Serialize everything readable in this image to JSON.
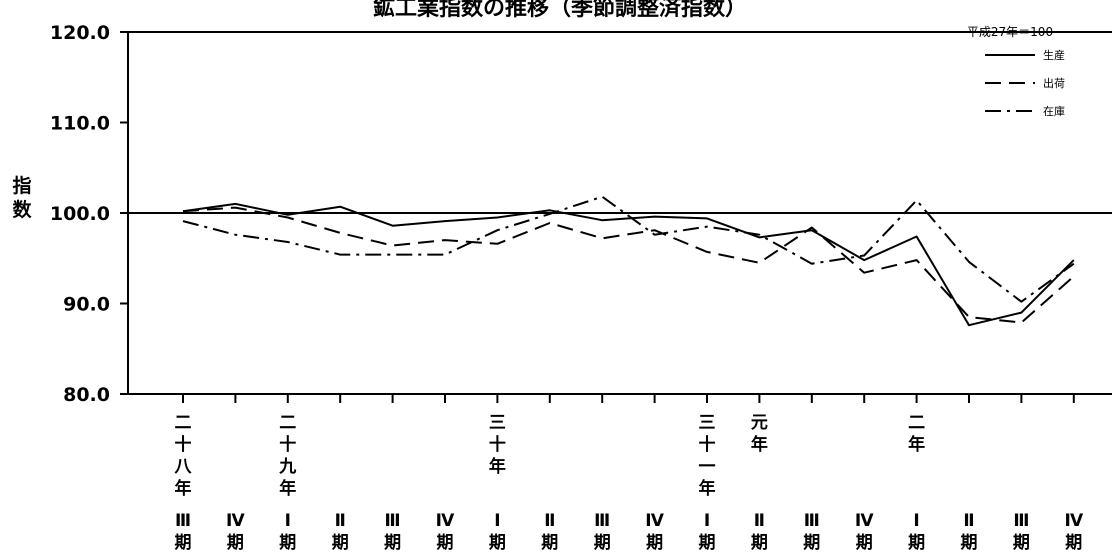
{
  "chart_data": {
    "type": "line",
    "title": "鉱工業指数の推移（季節調整済指数）",
    "base_note": "平成27年＝100",
    "ylabel": "指数",
    "ylim": [
      80.0,
      120.0
    ],
    "yticks": [
      "120.0",
      "110.0",
      "100.0",
      "90.0",
      "80.0"
    ],
    "reference_line": 100.0,
    "grid": false,
    "legend_position": "top-right",
    "categories": [
      {
        "year": "二十八年",
        "quarter": "Ⅲ期"
      },
      {
        "year": "",
        "quarter": "Ⅳ期"
      },
      {
        "year": "二十九年",
        "quarter": "Ⅰ期"
      },
      {
        "year": "",
        "quarter": "Ⅱ期"
      },
      {
        "year": "",
        "quarter": "Ⅲ期"
      },
      {
        "year": "",
        "quarter": "Ⅳ期"
      },
      {
        "year": "三十年",
        "quarter": "Ⅰ期"
      },
      {
        "year": "",
        "quarter": "Ⅱ期"
      },
      {
        "year": "",
        "quarter": "Ⅲ期"
      },
      {
        "year": "",
        "quarter": "Ⅳ期"
      },
      {
        "year": "三十一年",
        "quarter": "Ⅰ期"
      },
      {
        "year": "元年",
        "quarter": "Ⅱ期"
      },
      {
        "year": "",
        "quarter": "Ⅲ期"
      },
      {
        "year": "",
        "quarter": "Ⅳ期"
      },
      {
        "year": "二年",
        "quarter": "Ⅰ期"
      },
      {
        "year": "",
        "quarter": "Ⅱ期"
      },
      {
        "year": "",
        "quarter": "Ⅲ期"
      },
      {
        "year": "",
        "quarter": "Ⅳ期"
      }
    ],
    "series": [
      {
        "name": "生産",
        "dash": "solid",
        "color": "#000000",
        "values": [
          100.2,
          101.0,
          99.8,
          100.7,
          98.6,
          99.1,
          99.5,
          100.3,
          99.2,
          99.6,
          99.4,
          97.3,
          98.1,
          94.8,
          97.4,
          87.6,
          89.0,
          94.8
        ]
      },
      {
        "name": "出荷",
        "dash": "dashed",
        "color": "#000000",
        "values": [
          100.2,
          100.6,
          99.5,
          97.8,
          96.4,
          97.0,
          96.6,
          98.9,
          97.2,
          98.1,
          95.7,
          94.5,
          98.4,
          93.4,
          94.8,
          88.5,
          87.9,
          93.0
        ]
      },
      {
        "name": "在庫",
        "dash": "dashdot",
        "color": "#000000",
        "values": [
          99.1,
          97.6,
          96.8,
          95.4,
          95.4,
          95.4,
          98.1,
          99.9,
          101.8,
          97.6,
          98.5,
          97.6,
          94.4,
          95.3,
          101.4,
          94.6,
          90.2,
          94.4
        ]
      }
    ]
  }
}
